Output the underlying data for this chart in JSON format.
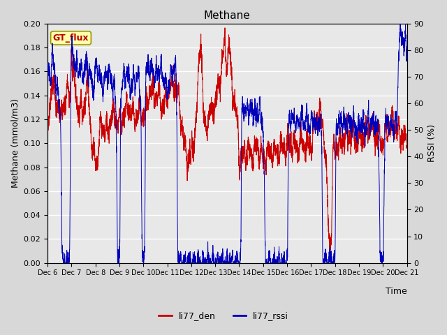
{
  "title": "Methane",
  "ylabel_left": "Methane (mmol/m3)",
  "ylabel_right": "RSSI (%)",
  "xlabel": "Time",
  "annotation": "GT_flux",
  "ylim_left": [
    0.0,
    0.2
  ],
  "ylim_right": [
    0,
    90
  ],
  "yticks_left": [
    0.0,
    0.02,
    0.04,
    0.06,
    0.08,
    0.1,
    0.12,
    0.14,
    0.16,
    0.18,
    0.2
  ],
  "yticks_right": [
    0,
    10,
    20,
    30,
    40,
    50,
    60,
    70,
    80,
    90
  ],
  "xtick_labels": [
    "Dec 6",
    "Dec 7",
    "Dec 8",
    "Dec 9",
    "Dec 10",
    "Dec 11",
    "Dec 12",
    "Dec 13",
    "Dec 14",
    "Dec 15",
    "Dec 16",
    "Dec 17",
    "Dec 18",
    "Dec 19",
    "Dec 20",
    "Dec 21"
  ],
  "color_red": "#cc0000",
  "color_blue": "#0000bb",
  "legend_entries": [
    "li77_den",
    "li77_rssi"
  ],
  "background_color": "#d8d8d8",
  "inner_bg": "#e8e8e8",
  "grid_color": "#ffffff",
  "title_fontsize": 11,
  "label_fontsize": 9,
  "tick_fontsize": 8
}
